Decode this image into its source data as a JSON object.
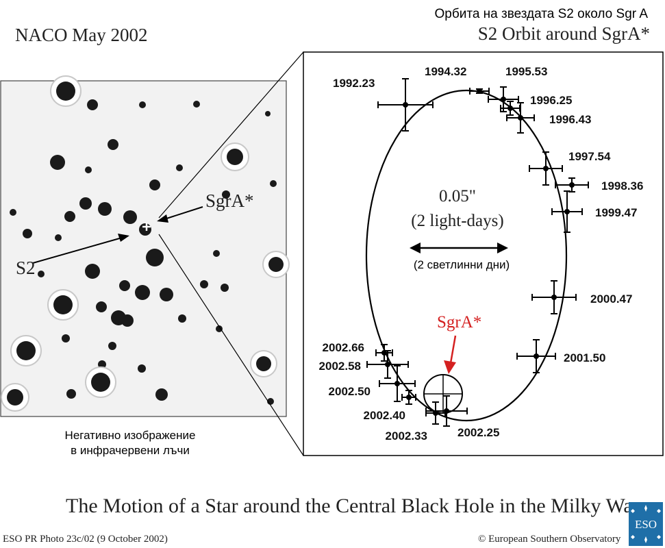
{
  "left_panel": {
    "title": "NACO May 2002",
    "caption_line1": "Негативно изображение",
    "caption_line2": "в инфрачервени лъчи",
    "label_s2": "S2",
    "label_sgra": "SgrA*"
  },
  "right_panel": {
    "title_bg": "Орбита на звездата S2 около Sgr A",
    "title_en": "S2 Orbit around SgrA*",
    "scale_value": "0.05\"",
    "scale_light_days": "(2 light-days)",
    "scale_bg": "(2 светлинни дни)",
    "sgra_label": "SgrA*",
    "sgra_color": "#d42020"
  },
  "chart_data": {
    "type": "scatter",
    "title": "S2 Orbit around SgrA*",
    "epochs": [
      {
        "epoch": "1992.23"
      },
      {
        "epoch": "1994.32"
      },
      {
        "epoch": "1995.53"
      },
      {
        "epoch": "1996.25"
      },
      {
        "epoch": "1996.43"
      },
      {
        "epoch": "1997.54"
      },
      {
        "epoch": "1998.36"
      },
      {
        "epoch": "1999.47"
      },
      {
        "epoch": "2000.47"
      },
      {
        "epoch": "2001.50"
      },
      {
        "epoch": "2002.25"
      },
      {
        "epoch": "2002.33"
      },
      {
        "epoch": "2002.40"
      },
      {
        "epoch": "2002.50"
      },
      {
        "epoch": "2002.58"
      },
      {
        "epoch": "2002.66"
      }
    ]
  },
  "footer": {
    "main_title": "The Motion of a Star around the Central Black Hole in the Milky Way",
    "photo_ref": "ESO PR Photo 23c/02 (9 October 2002)",
    "copyright": "© European Southern Observatory",
    "logo_text": "ESO"
  }
}
